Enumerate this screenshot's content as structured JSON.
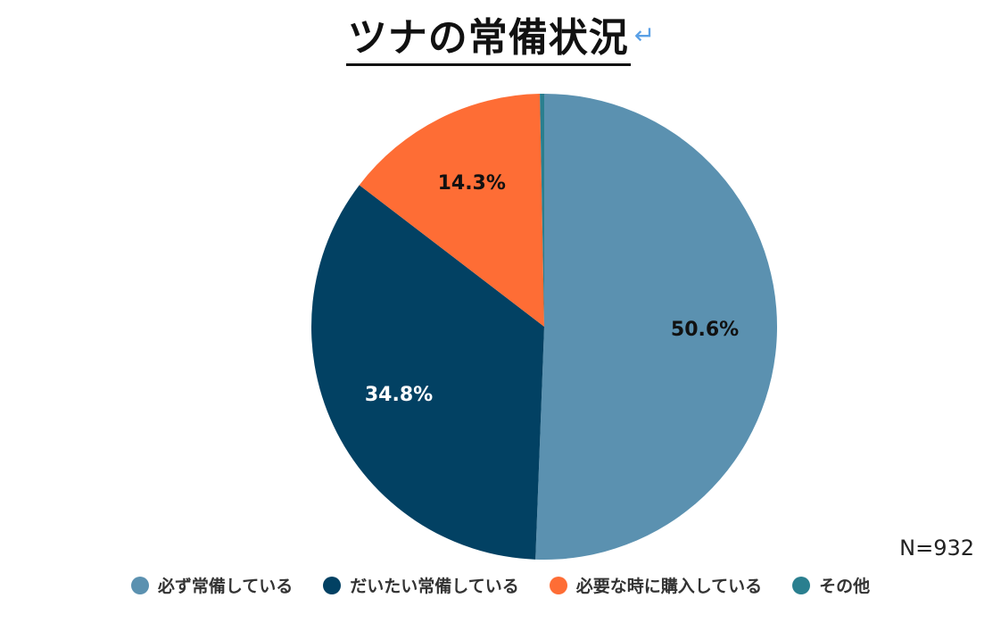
{
  "chart_data": {
    "type": "pie",
    "title": "ツナの常備状況",
    "title_trailing_mark": "↵",
    "sample_size_label": "N=932",
    "categories": [
      "必ず常備している",
      "だいたい常備している",
      "必要な時に購入している",
      "その他"
    ],
    "values": [
      50.6,
      34.8,
      14.3,
      0.3
    ],
    "data_labels": [
      "50.6%",
      "34.8%",
      "14.3%",
      ""
    ],
    "colors": [
      "#5b91b0",
      "#024163",
      "#fe6d35",
      "#2a7f8f"
    ],
    "label_colors": [
      "#111111",
      "#ffffff",
      "#111111",
      "#111111"
    ],
    "start_angle": "12 o'clock",
    "direction": "clockwise",
    "legend_position": "bottom"
  }
}
